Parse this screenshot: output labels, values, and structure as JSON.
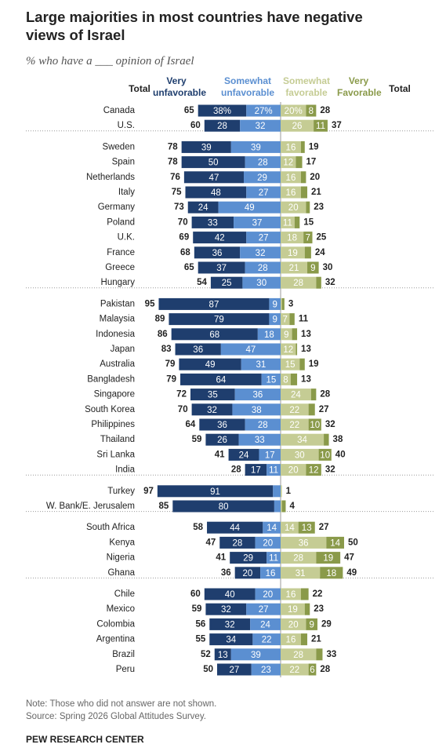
{
  "chart_data": {
    "type": "diverging-bar",
    "title": "Large majorities in most countries have negative views of Israel",
    "subtitle": "% who have a ___ opinion of Israel",
    "total_header_left": "Total",
    "total_header_right": "Total",
    "categories": [
      "Canada",
      "U.S.",
      "Sweden",
      "Spain",
      "Netherlands",
      "Italy",
      "Germany",
      "Poland",
      "U.K.",
      "France",
      "Greece",
      "Hungary",
      "Pakistan",
      "Malaysia",
      "Indonesia",
      "Japan",
      "Australia",
      "Bangladesh",
      "Singapore",
      "South Korea",
      "Philippines",
      "Thailand",
      "Sri Lanka",
      "India",
      "Turkey",
      "W. Bank/E. Jerusalem",
      "South Africa",
      "Kenya",
      "Nigeria",
      "Ghana",
      "Chile",
      "Mexico",
      "Colombia",
      "Argentina",
      "Brazil",
      "Peru"
    ],
    "group_sizes": [
      2,
      10,
      12,
      2,
      4,
      6
    ],
    "series": [
      {
        "name": "Very unfavorable",
        "color": "#1f3e6e",
        "values": [
          38,
          28,
          39,
          50,
          47,
          48,
          24,
          33,
          42,
          36,
          37,
          25,
          87,
          79,
          68,
          36,
          49,
          64,
          35,
          32,
          36,
          26,
          24,
          17,
          91,
          80,
          44,
          28,
          29,
          20,
          40,
          32,
          32,
          34,
          13,
          27
        ],
        "value_labels": [
          "38%",
          "28",
          "39",
          "50",
          "47",
          "48",
          "24",
          "33",
          "42",
          "36",
          "37",
          "25",
          "87",
          "79",
          "68",
          "36",
          "49",
          "64",
          "35",
          "32",
          "36",
          "26",
          "24",
          "17",
          "91",
          "80",
          "44",
          "28",
          "29",
          "20",
          "40",
          "32",
          "32",
          "34",
          "13",
          "27"
        ]
      },
      {
        "name": "Somewhat unfavorable",
        "color": "#5b8fd1",
        "values": [
          27,
          32,
          39,
          28,
          29,
          27,
          49,
          37,
          27,
          32,
          28,
          30,
          9,
          9,
          18,
          47,
          31,
          15,
          36,
          38,
          28,
          33,
          17,
          11,
          6,
          5,
          14,
          20,
          11,
          16,
          20,
          27,
          24,
          22,
          39,
          23
        ],
        "value_labels": [
          "27%",
          "32",
          "39",
          "28",
          "29",
          "27",
          "49",
          "37",
          "27",
          "32",
          "28",
          "30",
          "9",
          "9",
          "18",
          "47",
          "31",
          "15",
          "36",
          "38",
          "28",
          "33",
          "17",
          "11",
          null,
          null,
          "14",
          "20",
          "11",
          "16",
          "20",
          "27",
          "24",
          "22",
          "39",
          "23"
        ]
      },
      {
        "name": "Somewhat favorable",
        "color": "#c5cc94",
        "values": [
          20,
          26,
          16,
          12,
          16,
          16,
          20,
          11,
          18,
          19,
          21,
          28,
          1,
          7,
          9,
          12,
          15,
          8,
          24,
          22,
          22,
          34,
          30,
          20,
          1,
          1,
          14,
          36,
          28,
          31,
          16,
          19,
          20,
          16,
          28,
          22
        ],
        "value_labels": [
          "20%",
          "26",
          "16",
          "12",
          "16",
          "16",
          "20",
          "11",
          "18",
          "19",
          "21",
          "28",
          null,
          "7",
          "9",
          "12",
          "15",
          "8",
          "24",
          "22",
          "22",
          "34",
          "30",
          "20",
          null,
          null,
          "14",
          "36",
          "28",
          "31",
          "16",
          "19",
          "20",
          "16",
          "28",
          "22"
        ]
      },
      {
        "name": "Very Favorable",
        "color": "#8a9a4a",
        "values": [
          8,
          11,
          3,
          5,
          4,
          5,
          3,
          4,
          7,
          5,
          9,
          4,
          2,
          4,
          4,
          1,
          4,
          5,
          4,
          5,
          10,
          4,
          10,
          12,
          0,
          3,
          13,
          14,
          19,
          18,
          6,
          4,
          9,
          5,
          5,
          6
        ],
        "value_labels": [
          "8",
          "11",
          null,
          null,
          null,
          null,
          null,
          null,
          "7",
          null,
          "9",
          null,
          null,
          null,
          null,
          null,
          null,
          null,
          null,
          null,
          "10",
          null,
          "10",
          "12",
          null,
          null,
          "13",
          "14",
          "19",
          "18",
          null,
          null,
          "9",
          null,
          null,
          "6"
        ]
      }
    ],
    "totals_unfavorable": [
      65,
      60,
      78,
      78,
      76,
      75,
      73,
      70,
      69,
      68,
      65,
      54,
      95,
      89,
      86,
      83,
      79,
      79,
      72,
      70,
      64,
      59,
      41,
      28,
      97,
      85,
      58,
      47,
      41,
      36,
      60,
      59,
      56,
      55,
      52,
      50
    ],
    "totals_favorable": [
      28,
      37,
      19,
      17,
      20,
      21,
      23,
      15,
      25,
      24,
      30,
      32,
      3,
      11,
      13,
      13,
      19,
      13,
      28,
      27,
      32,
      38,
      40,
      32,
      1,
      4,
      27,
      50,
      47,
      49,
      22,
      23,
      29,
      21,
      33,
      28
    ],
    "note": "Note: Those who did not answer are not shown.",
    "source": "Source: Spring 2026 Global Attitudes Survey.",
    "credit": "PEW RESEARCH CENTER"
  }
}
